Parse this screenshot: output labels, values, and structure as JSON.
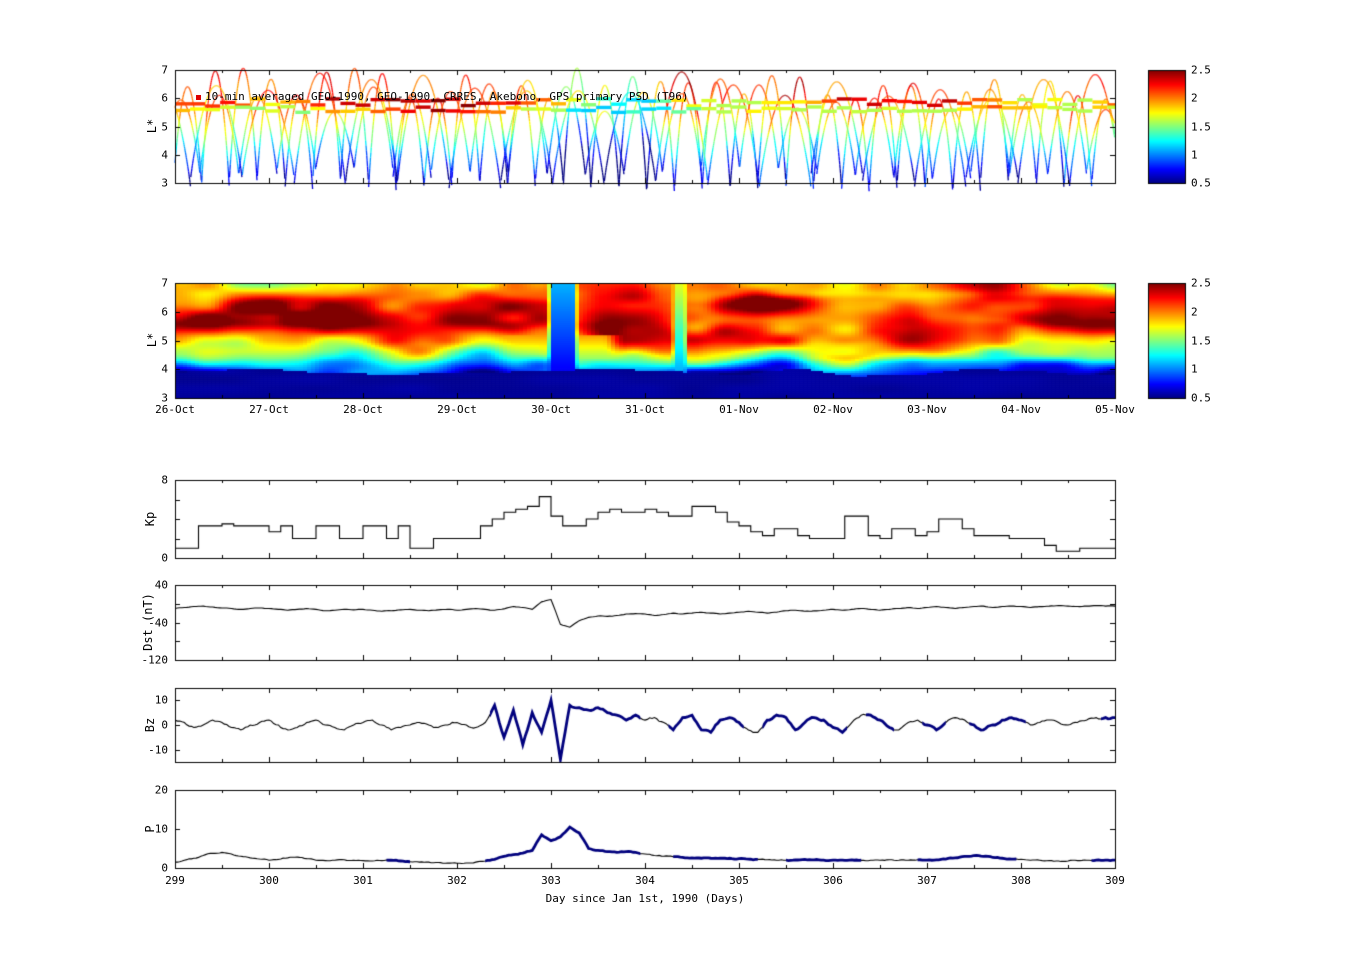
{
  "figure": {
    "background": "#ffffff",
    "line_color": "#000000",
    "bold_line_color": "#00007d"
  },
  "chart_data": [
    {
      "id": "psd-orbits",
      "type": "scatter",
      "title": "10-min averaged GEO-1990, GEO-1990, CRRES, Akebono, GPS primary PSD (T96)",
      "ylabel": "L*",
      "ylim": [
        3,
        7
      ],
      "yticks": [
        7,
        6,
        5,
        4,
        3
      ],
      "xlim": [
        299,
        309
      ],
      "colormap": "jet",
      "colorbar": {
        "min": 0.5,
        "max": 2.5,
        "tick_labels": [
          "2.5",
          "2",
          "1.5",
          "1",
          "0.5"
        ]
      },
      "value_vs_L": [
        [
          3,
          0.65
        ],
        [
          3.5,
          0.85
        ],
        [
          4,
          1.1
        ],
        [
          4.5,
          1.4
        ],
        [
          5,
          1.7
        ],
        [
          5.5,
          1.95
        ],
        [
          6,
          2.1
        ],
        [
          6.5,
          2.15
        ],
        [
          7,
          2.2
        ]
      ],
      "storm_dip": {
        "t_range": [
          302.9,
          304.3
        ],
        "delta": -0.5
      },
      "satellites": [
        {
          "period": 0.296,
          "phase": 0.05,
          "L_max": 7.15,
          "L_min": 2.6
        },
        {
          "period": 0.41,
          "phase": 0.35,
          "L_max": 6.7,
          "L_min": 3.05
        },
        {
          "period": 0.55,
          "phase": 0.7,
          "L_max": 7.05,
          "L_min": 2.75
        }
      ],
      "geo_traces": [
        {
          "L_base": 5.85,
          "wiggle": 0.13
        },
        {
          "L_base": 5.6,
          "wiggle": 0.1
        }
      ],
      "seed": 21
    },
    {
      "id": "psd-heatmap",
      "type": "heatmap",
      "ylabel": "L*",
      "ylim": [
        3,
        7
      ],
      "yticks": [
        7,
        6,
        5,
        4,
        3
      ],
      "xlim": [
        299,
        309
      ],
      "xtick_labels": [
        "26-Oct",
        "27-Oct",
        "28-Oct",
        "29-Oct",
        "30-Oct",
        "31-Oct",
        "01-Nov",
        "02-Nov",
        "03-Nov",
        "04-Nov",
        "05-Nov"
      ],
      "colormap": "jet",
      "colorbar": {
        "min": 0.5,
        "max": 2.5,
        "tick_labels": [
          "2.5",
          "2",
          "1.5",
          "1",
          "0.5"
        ]
      },
      "base_profile": [
        [
          3,
          0.55
        ],
        [
          3.8,
          0.62
        ],
        [
          4.1,
          1.0
        ],
        [
          4.4,
          1.4
        ],
        [
          5,
          2.0
        ],
        [
          5.6,
          2.2
        ],
        [
          6.3,
          2.15
        ],
        [
          7,
          1.9
        ]
      ],
      "noise": {
        "seed": 11,
        "amp": 0.45
      },
      "events": {
        "main_dropout": [
          302.95,
          303.3
        ],
        "minor_dropout": [
          304.28,
          304.46
        ],
        "cyan_uplift": {
          "t": [
            302.2,
            303.8
          ],
          "L_max": 5.2
        },
        "post_enhancement": {
          "t_start": 304.6,
          "delta": 0.18,
          "L": [
            4.2,
            6.7
          ]
        },
        "bottom_band_L": 3.75
      }
    },
    {
      "id": "kp",
      "type": "line",
      "ylabel": "Kp",
      "ylim": [
        0,
        8
      ],
      "yticks": [
        8,
        0
      ],
      "ytick_marks": [
        0,
        2,
        4,
        6,
        8
      ],
      "xlim": [
        299,
        309
      ],
      "x_start": 299,
      "x_step": 0.125,
      "step_plot": true,
      "jitter": 0,
      "values": [
        1.0,
        1.0,
        3.3,
        3.3,
        3.5,
        3.3,
        3.3,
        3.3,
        2.7,
        3.3,
        2.0,
        2.0,
        3.3,
        3.3,
        2.0,
        2.0,
        3.3,
        3.3,
        2.0,
        3.3,
        1.0,
        1.0,
        2.0,
        2.0,
        2.0,
        2.0,
        3.3,
        4.0,
        4.7,
        5.0,
        5.3,
        6.3,
        4.3,
        3.3,
        3.3,
        4.0,
        4.7,
        5.0,
        4.7,
        4.7,
        5.0,
        4.7,
        4.3,
        4.3,
        5.3,
        5.3,
        4.7,
        3.7,
        3.3,
        2.7,
        2.3,
        3.0,
        3.0,
        2.3,
        2.0,
        2.0,
        2.0,
        4.3,
        4.3,
        2.3,
        2.0,
        3.0,
        3.0,
        2.3,
        2.7,
        4.0,
        4.0,
        3.0,
        2.3,
        2.3,
        2.3,
        2.0,
        2.0,
        2.0,
        1.3,
        0.7,
        0.7,
        1.0,
        1.0,
        1.0
      ]
    },
    {
      "id": "dst",
      "type": "line",
      "ylabel": "Dst (nT)",
      "ylim": [
        -120,
        40
      ],
      "yticks": [
        40,
        -40,
        -120
      ],
      "ytick_marks": [
        40,
        0,
        -40,
        -80,
        -120
      ],
      "xlim": [
        299,
        309
      ],
      "x_start": 299,
      "x_step": 0.1,
      "step_plot": false,
      "jitter": 1.2,
      "values": [
        -10,
        -8,
        -6,
        -5,
        -7,
        -9,
        -10,
        -12,
        -10,
        -9,
        -10,
        -12,
        -14,
        -12,
        -10,
        -12,
        -15,
        -14,
        -12,
        -13,
        -12,
        -14,
        -16,
        -15,
        -13,
        -12,
        -14,
        -15,
        -13,
        -12,
        -14,
        -12,
        -10,
        -12,
        -14,
        -11,
        -6,
        -8,
        -12,
        4,
        9,
        -44,
        -50,
        -36,
        -29,
        -26,
        -27,
        -25,
        -22,
        -21,
        -22,
        -25,
        -23,
        -20,
        -22,
        -20,
        -18,
        -20,
        -22,
        -20,
        -18,
        -16,
        -18,
        -20,
        -18,
        -15,
        -14,
        -16,
        -15,
        -14,
        -12,
        -14,
        -12,
        -10,
        -12,
        -14,
        -12,
        -10,
        -8,
        -10,
        -8,
        -6,
        -8,
        -10,
        -8,
        -6,
        -5,
        -8,
        -6,
        -5,
        -6,
        -8,
        -6,
        -5,
        -4,
        -5,
        -6,
        -5,
        -4,
        -5,
        -5
      ]
    },
    {
      "id": "bz",
      "type": "line",
      "ylabel": "Bz",
      "ylim": [
        -15,
        15
      ],
      "yticks": [
        10,
        0,
        -10
      ],
      "ytick_marks": [
        10,
        0,
        -10
      ],
      "xlim": [
        299,
        309
      ],
      "x_start": 299,
      "x_step": 0.1,
      "step_plot": false,
      "jitter": 1.1,
      "bold": [
        [
          302.35,
          303.95
        ],
        [
          304.25,
          305.05
        ],
        [
          305.25,
          306.15
        ],
        [
          306.35,
          306.65
        ],
        [
          306.95,
          307.2
        ],
        [
          307.45,
          308.05
        ],
        [
          308.85,
          309.0
        ]
      ],
      "values": [
        2,
        1,
        -1,
        0,
        2,
        1,
        -1,
        -2,
        0,
        1,
        2,
        0,
        -2,
        -1,
        1,
        2,
        0,
        -1,
        -2,
        0,
        1,
        2,
        0,
        -2,
        -1,
        0,
        1,
        0,
        -1,
        0,
        1,
        0,
        -1,
        1,
        8,
        -5,
        6,
        -8,
        5,
        -3,
        10,
        -14,
        8,
        7,
        6,
        7,
        5,
        4,
        2,
        4,
        2,
        3,
        1,
        -2,
        3,
        4,
        -2,
        -3,
        2,
        3,
        1,
        -2,
        -3,
        2,
        4,
        3,
        -2,
        1,
        3,
        2,
        -1,
        -3,
        1,
        4,
        4,
        2,
        -1,
        -2,
        1,
        2,
        0,
        -2,
        1,
        3,
        2,
        0,
        -2,
        0,
        2,
        3,
        2,
        0,
        1,
        2,
        1,
        0,
        1,
        2,
        3,
        3,
        3
      ]
    },
    {
      "id": "p",
      "type": "line",
      "ylabel": "P",
      "ylim": [
        0,
        20
      ],
      "yticks": [
        20,
        10,
        0
      ],
      "ytick_marks": [
        20,
        10,
        0
      ],
      "xlim": [
        299,
        309
      ],
      "xticks": [
        299,
        300,
        301,
        302,
        303,
        304,
        305,
        306,
        307,
        308,
        309
      ],
      "xlabel": "Day since Jan 1st, 1990 (Days)",
      "x_start": 299,
      "x_step": 0.1,
      "step_plot": false,
      "jitter": 0.3,
      "bold": [
        [
          301.25,
          301.5
        ],
        [
          302.3,
          303.95
        ],
        [
          304.3,
          305.2
        ],
        [
          305.5,
          306.3
        ],
        [
          306.9,
          307.95
        ],
        [
          308.75,
          309.0
        ]
      ],
      "values": [
        1.5,
        2.0,
        2.5,
        3.2,
        3.8,
        4.0,
        3.6,
        3.0,
        2.6,
        2.3,
        2.0,
        2.2,
        2.6,
        2.8,
        2.4,
        2.0,
        1.9,
        2.0,
        2.1,
        2.0,
        1.9,
        1.8,
        1.9,
        2.0,
        1.8,
        1.6,
        1.5,
        1.5,
        1.4,
        1.3,
        1.2,
        1.3,
        1.5,
        1.8,
        2.2,
        3.0,
        3.4,
        3.8,
        4.5,
        8.5,
        7.0,
        8.0,
        10.5,
        9.0,
        5.0,
        4.5,
        4.2,
        4.0,
        4.2,
        4.0,
        3.6,
        3.2,
        3.0,
        2.9,
        2.7,
        2.6,
        2.5,
        2.5,
        2.5,
        2.5,
        2.4,
        2.3,
        2.2,
        2.1,
        2.0,
        2.0,
        2.1,
        2.2,
        2.1,
        2.0,
        2.0,
        2.0,
        2.1,
        2.0,
        2.0,
        2.0,
        2.1,
        2.0,
        2.0,
        2.1,
        2.0,
        2.1,
        2.3,
        2.6,
        3.0,
        3.2,
        3.0,
        2.7,
        2.5,
        2.3,
        2.2,
        2.0,
        2.0,
        1.9,
        1.8,
        1.8,
        1.9,
        2.0,
        2.0,
        2.0,
        2.0
      ]
    }
  ]
}
